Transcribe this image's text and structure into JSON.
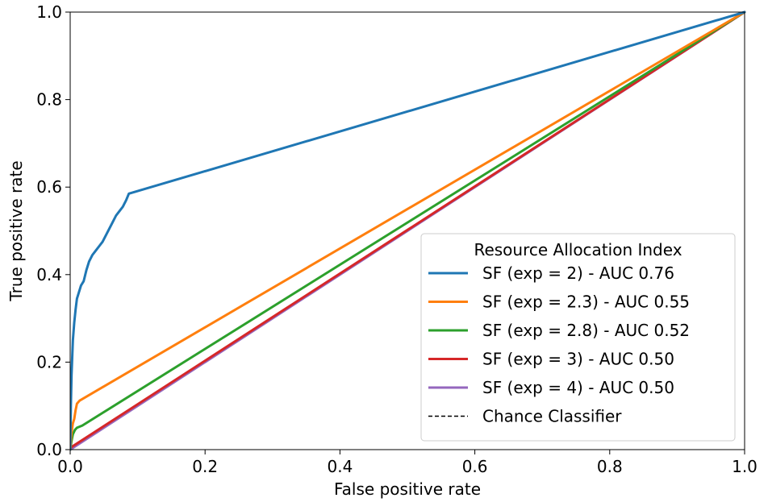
{
  "chart_data": {
    "type": "line",
    "title": "",
    "xlabel": "False positive rate",
    "ylabel": "True positive rate",
    "xlim": [
      0.0,
      1.0
    ],
    "ylim": [
      0.0,
      1.0
    ],
    "xticks": [
      "0.0",
      "0.2",
      "0.4",
      "0.6",
      "0.8",
      "1.0"
    ],
    "yticks": [
      "0.0",
      "0.2",
      "0.4",
      "0.6",
      "0.8",
      "1.0"
    ],
    "grid": false,
    "legend": {
      "title": "Resource Allocation Index",
      "placement": "lower-right"
    },
    "series": [
      {
        "name": "SF (exp = 2) - AUC 0.76",
        "color": "#1f77b4",
        "style": "solid",
        "x": [
          0.0,
          0.001,
          0.002,
          0.003,
          0.004,
          0.006,
          0.008,
          0.01,
          0.013,
          0.016,
          0.02,
          0.024,
          0.028,
          0.033,
          0.038,
          0.043,
          0.048,
          0.053,
          0.058,
          0.063,
          0.068,
          0.073,
          0.078,
          0.083,
          0.087,
          1.0
        ],
        "y": [
          0.0,
          0.1,
          0.17,
          0.21,
          0.25,
          0.29,
          0.32,
          0.345,
          0.36,
          0.375,
          0.385,
          0.41,
          0.43,
          0.445,
          0.455,
          0.465,
          0.475,
          0.49,
          0.505,
          0.52,
          0.535,
          0.545,
          0.555,
          0.57,
          0.585,
          1.0
        ]
      },
      {
        "name": "SF (exp = 2.3) - AUC 0.55",
        "color": "#ff7f0e",
        "style": "solid",
        "x": [
          0.0,
          0.002,
          0.004,
          0.006,
          0.008,
          0.01,
          0.014,
          1.0
        ],
        "y": [
          0.0,
          0.04,
          0.06,
          0.07,
          0.09,
          0.105,
          0.112,
          1.0
        ]
      },
      {
        "name": "SF (exp = 2.8) - AUC 0.52",
        "color": "#2ca02c",
        "style": "solid",
        "x": [
          0.0,
          0.002,
          0.004,
          0.007,
          0.01,
          0.018,
          1.0
        ],
        "y": [
          0.0,
          0.02,
          0.035,
          0.045,
          0.05,
          0.055,
          1.0
        ]
      },
      {
        "name": "SF (exp = 3) - AUC 0.50",
        "color": "#d62728",
        "style": "solid",
        "x": [
          0.0,
          1.0
        ],
        "y": [
          0.004,
          1.0
        ]
      },
      {
        "name": "SF (exp = 4) - AUC 0.50",
        "color": "#9467bd",
        "style": "solid",
        "x": [
          0.0,
          1.0
        ],
        "y": [
          0.0,
          1.0
        ]
      },
      {
        "name": "Chance Classifier",
        "color": "#000000",
        "style": "dashed",
        "x": [
          0.0,
          1.0
        ],
        "y": [
          0.0,
          1.0
        ]
      }
    ]
  }
}
